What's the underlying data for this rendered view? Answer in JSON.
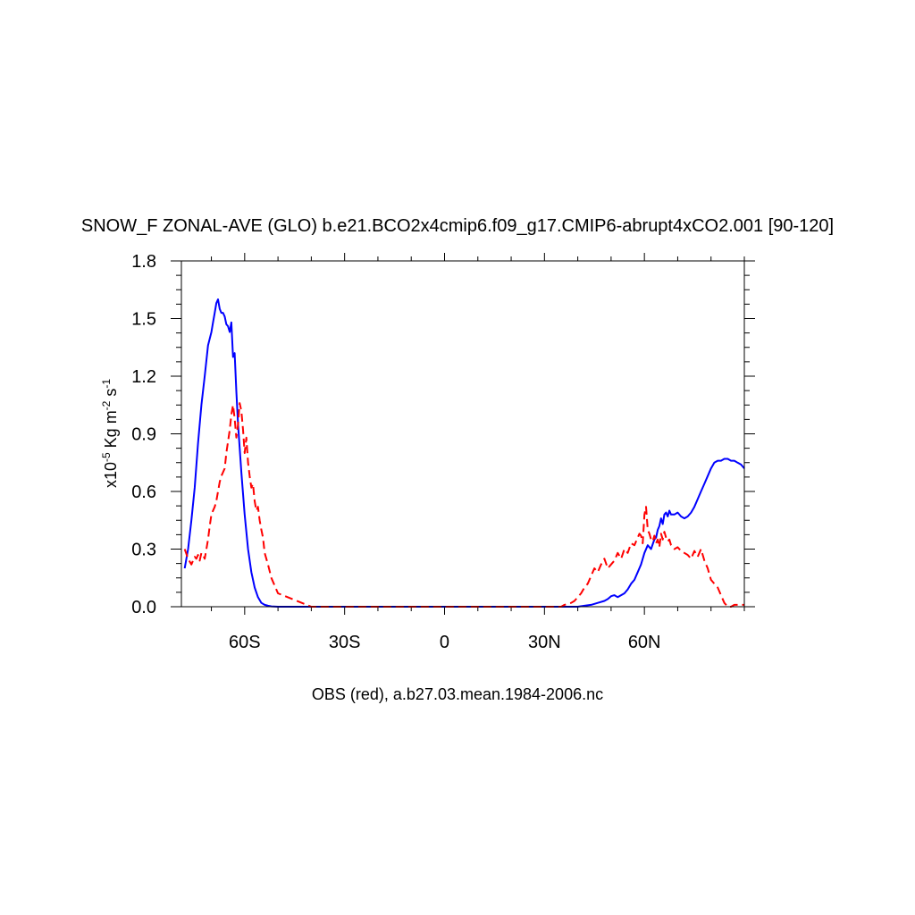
{
  "chart_data": {
    "type": "line",
    "title": "SNOW_F ZONAL-AVE (GLO) b.e21.BCO2x4cmip6.f09_g17.CMIP6-abrupt4xCO2.001 [90-120]",
    "xlabel": "OBS (red), a.b27.03.mean.1984-2006.nc",
    "ylabel": {
      "prefix": "x10",
      "exp1": "-5",
      "mid": " Kg m",
      "exp2": "-2",
      "mid2": " s",
      "exp3": "-1"
    },
    "xlim": [
      -79,
      90
    ],
    "ylim": [
      0,
      1.8
    ],
    "x_ticks": [
      {
        "value": -60,
        "label": "60S"
      },
      {
        "value": -30,
        "label": "30S"
      },
      {
        "value": 0,
        "label": "0"
      },
      {
        "value": 30,
        "label": "30N"
      },
      {
        "value": 60,
        "label": "60N"
      }
    ],
    "y_ticks": [
      {
        "value": 0.0,
        "label": "0.0"
      },
      {
        "value": 0.3,
        "label": "0.3"
      },
      {
        "value": 0.6,
        "label": "0.6"
      },
      {
        "value": 0.9,
        "label": "0.9"
      },
      {
        "value": 1.2,
        "label": "1.2"
      },
      {
        "value": 1.5,
        "label": "1.5"
      },
      {
        "value": 1.8,
        "label": "1.8"
      }
    ],
    "series": [
      {
        "color": "#0000ff",
        "dash": "solid",
        "x": [
          -78,
          -77,
          -76,
          -75,
          -74,
          -73,
          -72,
          -71,
          -70,
          -69.5,
          -69,
          -68.5,
          -68,
          -67.5,
          -67,
          -66.5,
          -66,
          -65.5,
          -65,
          -64.5,
          -64,
          -63.5,
          -63,
          -62.5,
          -62,
          -61,
          -60,
          -59,
          -58,
          -57,
          -56,
          -55,
          -54,
          -53,
          -52,
          -50,
          -40,
          0,
          35,
          40,
          42,
          44,
          46,
          48,
          49,
          50,
          51,
          52,
          53,
          54,
          55,
          56,
          57,
          58,
          59,
          60,
          61,
          62,
          63,
          63.5,
          64,
          64.5,
          65,
          65.5,
          66,
          66.5,
          67,
          67.5,
          68,
          69,
          70,
          71,
          72,
          73,
          74,
          75,
          76,
          77,
          78,
          79,
          80,
          81,
          82,
          83,
          84,
          85,
          86,
          87,
          88,
          89,
          90
        ],
        "y": [
          0.2,
          0.3,
          0.45,
          0.62,
          0.85,
          1.05,
          1.2,
          1.36,
          1.43,
          1.48,
          1.53,
          1.58,
          1.6,
          1.55,
          1.53,
          1.53,
          1.51,
          1.47,
          1.46,
          1.43,
          1.48,
          1.3,
          1.32,
          1.12,
          0.95,
          0.7,
          0.48,
          0.3,
          0.18,
          0.1,
          0.05,
          0.02,
          0.01,
          0.005,
          0.002,
          0.0,
          0.0,
          0.0,
          0.0,
          0.0,
          0.005,
          0.01,
          0.02,
          0.03,
          0.04,
          0.055,
          0.06,
          0.05,
          0.06,
          0.07,
          0.09,
          0.12,
          0.14,
          0.18,
          0.22,
          0.28,
          0.32,
          0.3,
          0.35,
          0.36,
          0.4,
          0.42,
          0.46,
          0.43,
          0.48,
          0.49,
          0.47,
          0.5,
          0.48,
          0.48,
          0.49,
          0.47,
          0.46,
          0.47,
          0.49,
          0.52,
          0.56,
          0.6,
          0.64,
          0.68,
          0.72,
          0.75,
          0.76,
          0.76,
          0.77,
          0.77,
          0.76,
          0.76,
          0.75,
          0.74,
          0.72
        ]
      },
      {
        "color": "#ff0000",
        "dash": "dashed",
        "x": [
          -78,
          -77,
          -76,
          -75,
          -74.5,
          -74,
          -73.5,
          -73,
          -72.5,
          -72,
          -71.5,
          -71,
          -70.5,
          -70,
          -69.5,
          -69,
          -68.5,
          -68,
          -67.5,
          -67,
          -66.5,
          -66,
          -65.5,
          -65,
          -64.5,
          -64,
          -63.5,
          -63,
          -62.5,
          -62,
          -61.5,
          -61,
          -60.5,
          -60,
          -59.5,
          -59,
          -58.5,
          -58,
          -57.5,
          -57,
          -56.5,
          -56,
          -55.5,
          -55,
          -54.5,
          -54,
          -53,
          -52,
          -50,
          -40,
          0,
          35,
          36,
          38,
          39,
          40,
          41,
          42,
          43,
          44,
          45,
          46,
          47,
          48,
          49,
          50,
          51,
          52,
          53,
          54,
          55,
          56,
          57,
          58,
          58.5,
          59,
          59.5,
          60,
          60.5,
          61,
          61.5,
          62,
          62.5,
          63,
          63.5,
          64,
          64.5,
          65,
          65.5,
          66,
          66.5,
          67,
          67.5,
          68,
          69,
          70,
          71,
          72,
          73,
          74,
          75,
          76,
          77,
          78,
          79,
          80,
          81,
          82,
          83,
          84,
          85,
          86,
          87,
          88,
          89,
          90
        ],
        "y": [
          0.3,
          0.25,
          0.22,
          0.26,
          0.25,
          0.27,
          0.24,
          0.28,
          0.27,
          0.25,
          0.3,
          0.35,
          0.42,
          0.48,
          0.5,
          0.52,
          0.55,
          0.6,
          0.65,
          0.68,
          0.7,
          0.72,
          0.8,
          0.86,
          0.92,
          1.0,
          1.05,
          0.98,
          0.88,
          0.95,
          1.06,
          1.02,
          0.92,
          0.8,
          0.88,
          0.75,
          0.68,
          0.62,
          0.64,
          0.55,
          0.5,
          0.52,
          0.45,
          0.4,
          0.36,
          0.28,
          0.22,
          0.15,
          0.07,
          0.0,
          0.0,
          0.0,
          0.01,
          0.02,
          0.03,
          0.05,
          0.07,
          0.1,
          0.12,
          0.16,
          0.2,
          0.18,
          0.22,
          0.25,
          0.2,
          0.22,
          0.24,
          0.28,
          0.25,
          0.3,
          0.28,
          0.33,
          0.32,
          0.36,
          0.38,
          0.37,
          0.33,
          0.48,
          0.52,
          0.4,
          0.38,
          0.35,
          0.34,
          0.37,
          0.33,
          0.35,
          0.31,
          0.38,
          0.35,
          0.39,
          0.36,
          0.34,
          0.35,
          0.32,
          0.3,
          0.31,
          0.29,
          0.28,
          0.27,
          0.25,
          0.29,
          0.26,
          0.3,
          0.24,
          0.2,
          0.14,
          0.12,
          0.1,
          0.06,
          0.02,
          0.0,
          0.0,
          0.01,
          0.01,
          0.01,
          0.01
        ]
      }
    ],
    "grid": false,
    "legend": "none"
  }
}
